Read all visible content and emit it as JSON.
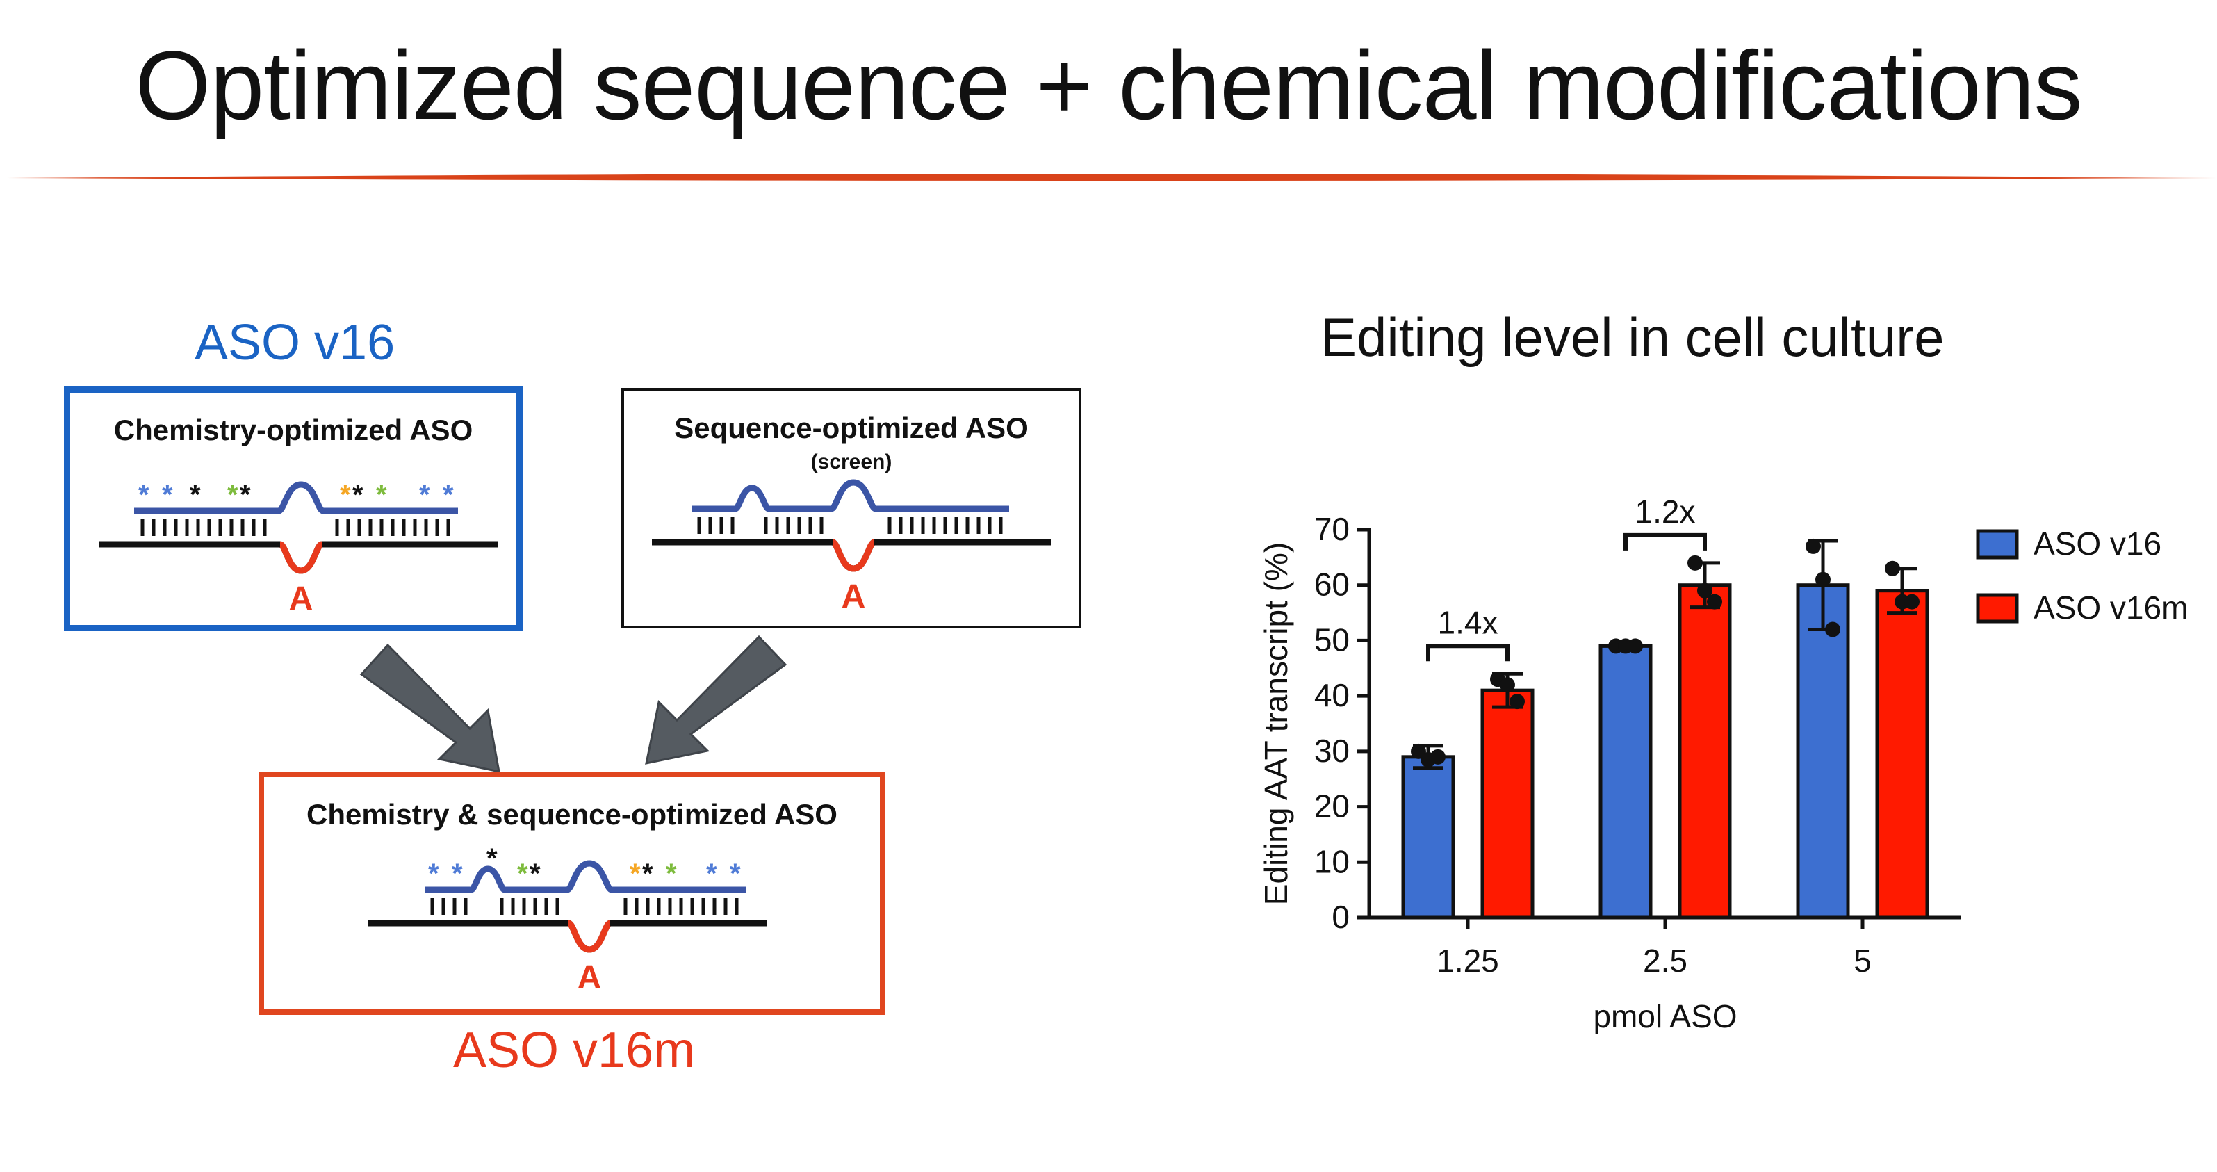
{
  "slide": {
    "title": "Optimized sequence + chemical modifications"
  },
  "diagram": {
    "aso_v16_label": "ASO v16",
    "aso_v16m_label": "ASO v16m",
    "chemistry_box_title": "Chemistry-optimized ASO",
    "sequence_box_title": "Sequence-optimized ASO",
    "sequence_box_subtitle": "(screen)",
    "combined_box_title": "Chemistry & sequence-optimized ASO",
    "edit_site_letter": "A",
    "modification_mark": "*",
    "colors": {
      "aso_v16": "#1a63c4",
      "aso_v16m": "#e8391c",
      "strand": "#3b55a6",
      "edit": "#e8391c",
      "arrow": "#555b61",
      "mark_blue": "#4f7bd6",
      "mark_black": "#111111",
      "mark_green": "#7dbb3c",
      "mark_orange": "#f5a623"
    }
  },
  "chart_data": {
    "type": "bar",
    "title": "Editing level in cell culture",
    "xlabel": "pmol ASO",
    "ylabel": "Editing AAT transcript (%)",
    "categories": [
      "1.25",
      "2.5",
      "5"
    ],
    "ylim": [
      0,
      70
    ],
    "yticks": [
      "0",
      "10",
      "20",
      "30",
      "40",
      "50",
      "60",
      "70"
    ],
    "legend_position": "right",
    "series": [
      {
        "name": "ASO v16",
        "color": "#3d6fd0",
        "values": [
          29,
          49,
          60
        ],
        "error": [
          2,
          0.5,
          8
        ],
        "points": [
          [
            30,
            28.5,
            29
          ],
          [
            49,
            49,
            49
          ],
          [
            67,
            61,
            52
          ]
        ]
      },
      {
        "name": "ASO v16m",
        "color": "#ff1a00",
        "values": [
          41,
          60,
          59
        ],
        "error": [
          3,
          4,
          4
        ],
        "points": [
          [
            43,
            42,
            39
          ],
          [
            64,
            59,
            57
          ],
          [
            63,
            57,
            57
          ]
        ]
      }
    ],
    "annotations": [
      {
        "label": "1.4x",
        "category": "1.25"
      },
      {
        "label": "1.2x",
        "category": "2.5"
      }
    ]
  }
}
